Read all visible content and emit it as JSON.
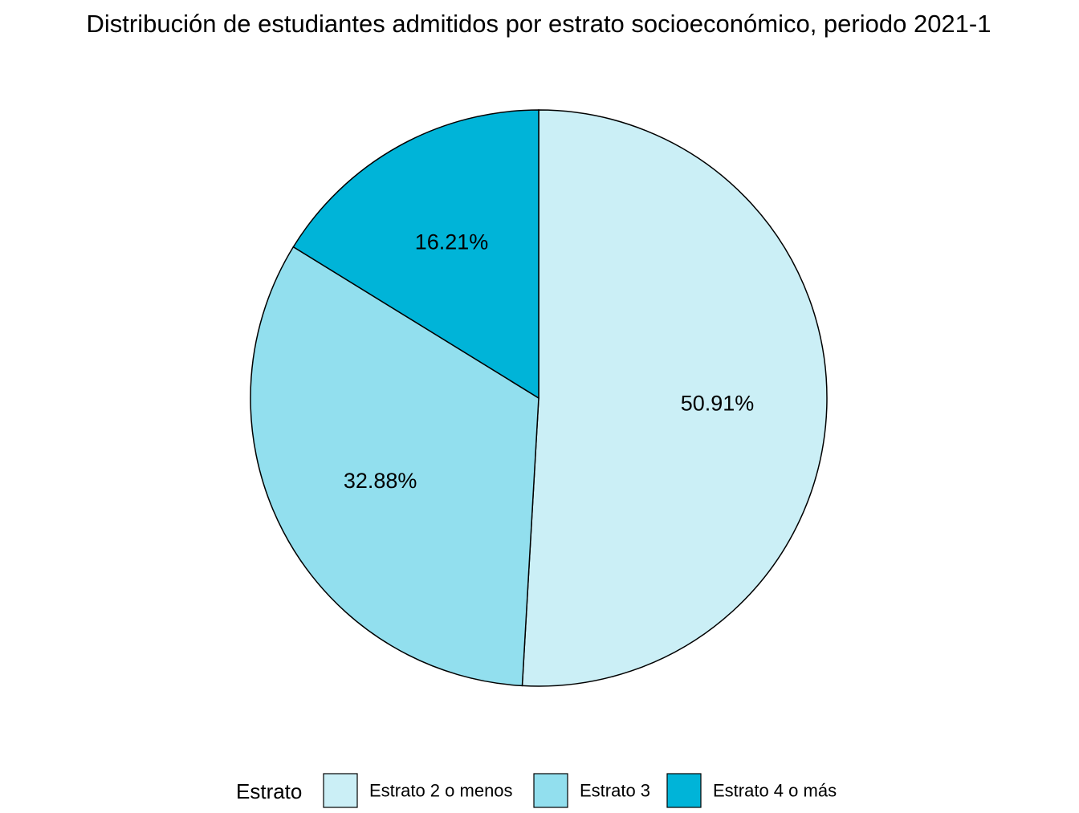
{
  "chart_data": {
    "type": "pie",
    "title": "Distribución de estudiantes admitidos por estrato socioeconómico, periodo 2021-1",
    "categories": [
      "Estrato 2 o menos",
      "Estrato 3",
      "Estrato 4 o más"
    ],
    "values": [
      50.91,
      32.88,
      16.21
    ],
    "data_labels": [
      "50.91%",
      "32.88%",
      "16.21%"
    ],
    "colors": [
      "#cbeff6",
      "#92dfee",
      "#00b4d8"
    ],
    "start_angle": "12 o'clock",
    "direction": "clockwise",
    "legend": {
      "title": "Estrato",
      "placement": "bottom",
      "entries": [
        "Estrato 2 o menos",
        "Estrato 3",
        "Estrato 4 o más"
      ]
    }
  }
}
